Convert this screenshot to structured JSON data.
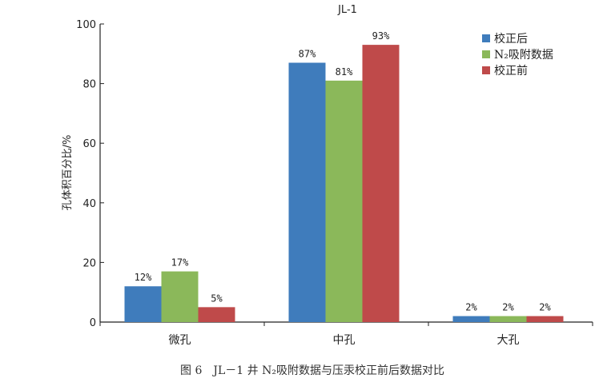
{
  "chart_data": {
    "type": "bar",
    "title": "JL-1",
    "xlabel": "",
    "ylabel": "孔体积百分比/%",
    "ylim": [
      0,
      100
    ],
    "yticks": [
      0,
      20,
      40,
      60,
      80,
      100
    ],
    "categories": [
      "微孔",
      "中孔",
      "大孔"
    ],
    "series": [
      {
        "name": "校正后",
        "color": "#3f7cbc",
        "values": [
          12,
          87,
          2
        ],
        "labels": [
          "12%",
          "87%",
          "2%"
        ]
      },
      {
        "name": "N₂吸附数据",
        "color": "#8bb85a",
        "values": [
          17,
          81,
          2
        ],
        "labels": [
          "17%",
          "81%",
          "2%"
        ]
      },
      {
        "name": "校正前",
        "color": "#bf4a4a",
        "values": [
          5,
          93,
          2
        ],
        "labels": [
          "5%",
          "93%",
          "2%"
        ]
      }
    ],
    "legend_position": "top-right",
    "grid": false
  },
  "caption": "图 6　JL－1 井 N₂吸附数据与压汞校正前后数据对比"
}
